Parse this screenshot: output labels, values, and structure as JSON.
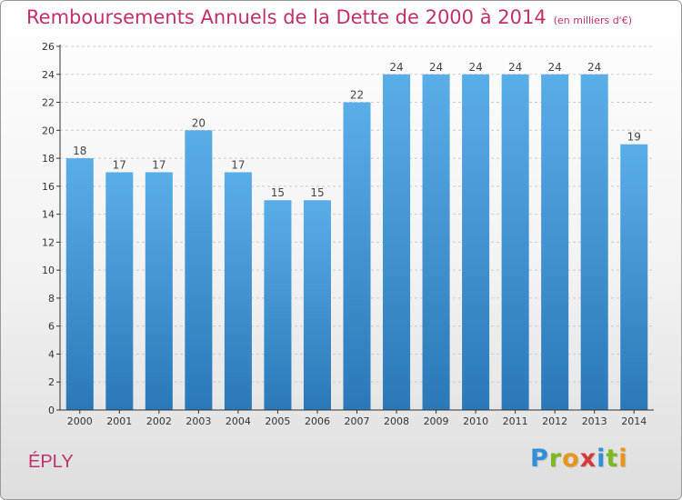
{
  "header": {
    "title": "Remboursements Annuels de la Dette de 2000 à 2014",
    "unit": "(en milliers d'€)"
  },
  "footer": {
    "commune": "ÉPLY",
    "logo_letters": [
      "P",
      "r",
      "o",
      "x",
      "i",
      "t",
      "i"
    ],
    "logo_colors": [
      "#2f8fd8",
      "#7cb820",
      "#e8951a",
      "#d43a3a",
      "#2f8fd8",
      "#7cb820",
      "#e8951a"
    ]
  },
  "colors": {
    "bar_top": "#5aaee8",
    "bar_bottom": "#2a78b8",
    "title": "#c0306a",
    "axis": "#333333",
    "grid": "#cccccc"
  },
  "chart_data": {
    "type": "bar",
    "categories": [
      "2000",
      "2001",
      "2002",
      "2003",
      "2004",
      "2005",
      "2006",
      "2007",
      "2008",
      "2009",
      "2010",
      "2011",
      "2012",
      "2013",
      "2014"
    ],
    "values": [
      18,
      17,
      17,
      20,
      17,
      15,
      15,
      22,
      24,
      24,
      24,
      24,
      24,
      24,
      19
    ],
    "data_labels": [
      "18",
      "17",
      "17",
      "20",
      "17",
      "15",
      "15",
      "22",
      "24",
      "24",
      "24",
      "24",
      "24",
      "24",
      "19"
    ],
    "ylim": [
      0,
      26
    ],
    "yticks": [
      0,
      2,
      4,
      6,
      8,
      10,
      12,
      14,
      16,
      18,
      20,
      22,
      24,
      26
    ],
    "grid": "horizontal dashed",
    "xlabel": "",
    "ylabel": ""
  }
}
